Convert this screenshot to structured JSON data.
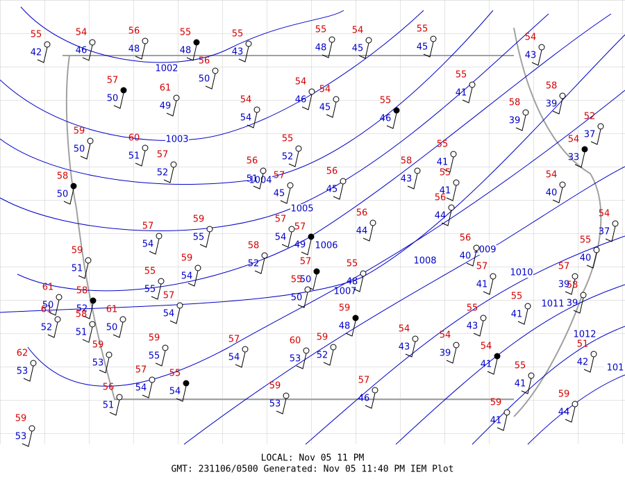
{
  "stations": [
    {
      "temp": 55,
      "dew": 42
    },
    {
      "temp": 54,
      "dew": 46
    },
    {
      "temp": 56,
      "dew": 48
    },
    {
      "temp": 55,
      "dew": 48
    },
    {
      "temp": 55,
      "dew": 43
    },
    {
      "temp": 55,
      "dew": 48
    },
    {
      "temp": 54,
      "dew": 45
    },
    {
      "temp": 55,
      "dew": 45
    },
    {
      "temp": 54,
      "dew": 43
    },
    {
      "temp": 56,
      "dew": 50
    },
    {
      "temp": 57,
      "dew": 50
    },
    {
      "temp": 61,
      "dew": 49
    },
    {
      "temp": 54,
      "dew": 46
    },
    {
      "temp": 54,
      "dew": 45
    },
    {
      "temp": 55,
      "dew": 41
    },
    {
      "temp": 58,
      "dew": 39
    },
    {
      "temp": 54,
      "dew": 54
    },
    {
      "temp": 55,
      "dew": 46
    },
    {
      "temp": 58,
      "dew": 39
    },
    {
      "temp": 52,
      "dew": 37
    },
    {
      "temp": 59,
      "dew": 50
    },
    {
      "temp": 60,
      "dew": 51
    },
    {
      "temp": 57,
      "dew": 52
    },
    {
      "temp": 55,
      "dew": 52
    },
    {
      "temp": 54,
      "dew": 33
    },
    {
      "temp": 55,
      "dew": 41
    },
    {
      "temp": 56,
      "dew": 51
    },
    {
      "temp": 58,
      "dew": 43
    },
    {
      "temp": 57,
      "dew": 45
    },
    {
      "temp": 56,
      "dew": 45
    },
    {
      "temp": 55,
      "dew": 41
    },
    {
      "temp": 58,
      "dew": 50
    },
    {
      "temp": 54,
      "dew": 40
    },
    {
      "temp": 56,
      "dew": 44
    },
    {
      "temp": 56,
      "dew": 44
    },
    {
      "temp": 57,
      "dew": 54
    },
    {
      "temp": 59,
      "dew": 55
    },
    {
      "temp": 57,
      "dew": 54
    },
    {
      "temp": 57,
      "dew": 49
    },
    {
      "temp": 54,
      "dew": 37
    },
    {
      "temp": 58,
      "dew": 52
    },
    {
      "temp": 56,
      "dew": 40
    },
    {
      "temp": 55,
      "dew": 40
    },
    {
      "temp": 59,
      "dew": 51
    },
    {
      "temp": 59,
      "dew": 54
    },
    {
      "temp": 57,
      "dew": 50
    },
    {
      "temp": 55,
      "dew": 48
    },
    {
      "temp": 57,
      "dew": 41
    },
    {
      "temp": 55,
      "dew": 55
    },
    {
      "temp": 55,
      "dew": 50
    },
    {
      "temp": 57,
      "dew": 39
    },
    {
      "temp": 58,
      "dew": 39
    },
    {
      "temp": 58,
      "dew": 52
    },
    {
      "temp": 57,
      "dew": 54
    },
    {
      "temp": 55,
      "dew": 41
    },
    {
      "temp": 61,
      "dew": 52
    },
    {
      "temp": 61,
      "dew": 50
    },
    {
      "temp": 58,
      "dew": 51
    },
    {
      "temp": 61,
      "dew": 50
    },
    {
      "temp": 59,
      "dew": 48
    },
    {
      "temp": 55,
      "dew": 43
    },
    {
      "temp": 54,
      "dew": 43
    },
    {
      "temp": 54,
      "dew": 39
    },
    {
      "temp": 59,
      "dew": 55
    },
    {
      "temp": 57,
      "dew": 54
    },
    {
      "temp": 59,
      "dew": 52
    },
    {
      "temp": 54,
      "dew": 41
    },
    {
      "temp": 59,
      "dew": 53
    },
    {
      "temp": 62,
      "dew": 53
    },
    {
      "temp": 60,
      "dew": 53
    },
    {
      "temp": 55,
      "dew": 41
    },
    {
      "temp": 51,
      "dew": 42
    },
    {
      "temp": 57,
      "dew": 54
    },
    {
      "temp": 55,
      "dew": 54
    },
    {
      "temp": 57,
      "dew": 46
    },
    {
      "temp": 59,
      "dew": 53
    },
    {
      "temp": 56,
      "dew": 51
    },
    {
      "temp": 59,
      "dew": 44
    },
    {
      "temp": 59,
      "dew": 41
    },
    {
      "temp": 59,
      "dew": 53
    }
  ],
  "isobars": [
    {
      "label": "1002"
    },
    {
      "label": "1003"
    },
    {
      "label": "1004"
    },
    {
      "label": "1005"
    },
    {
      "label": "1006"
    },
    {
      "label": "1007"
    },
    {
      "label": "1008"
    },
    {
      "label": "1009"
    },
    {
      "label": "1010"
    },
    {
      "label": "1011"
    },
    {
      "label": "1012"
    },
    {
      "label": "101"
    }
  ],
  "footer": {
    "local": "LOCAL: Nov 05 11 PM",
    "gmt": "GMT: 231106/0500 Generated: Nov 05 11:40 PM IEM Plot"
  }
}
